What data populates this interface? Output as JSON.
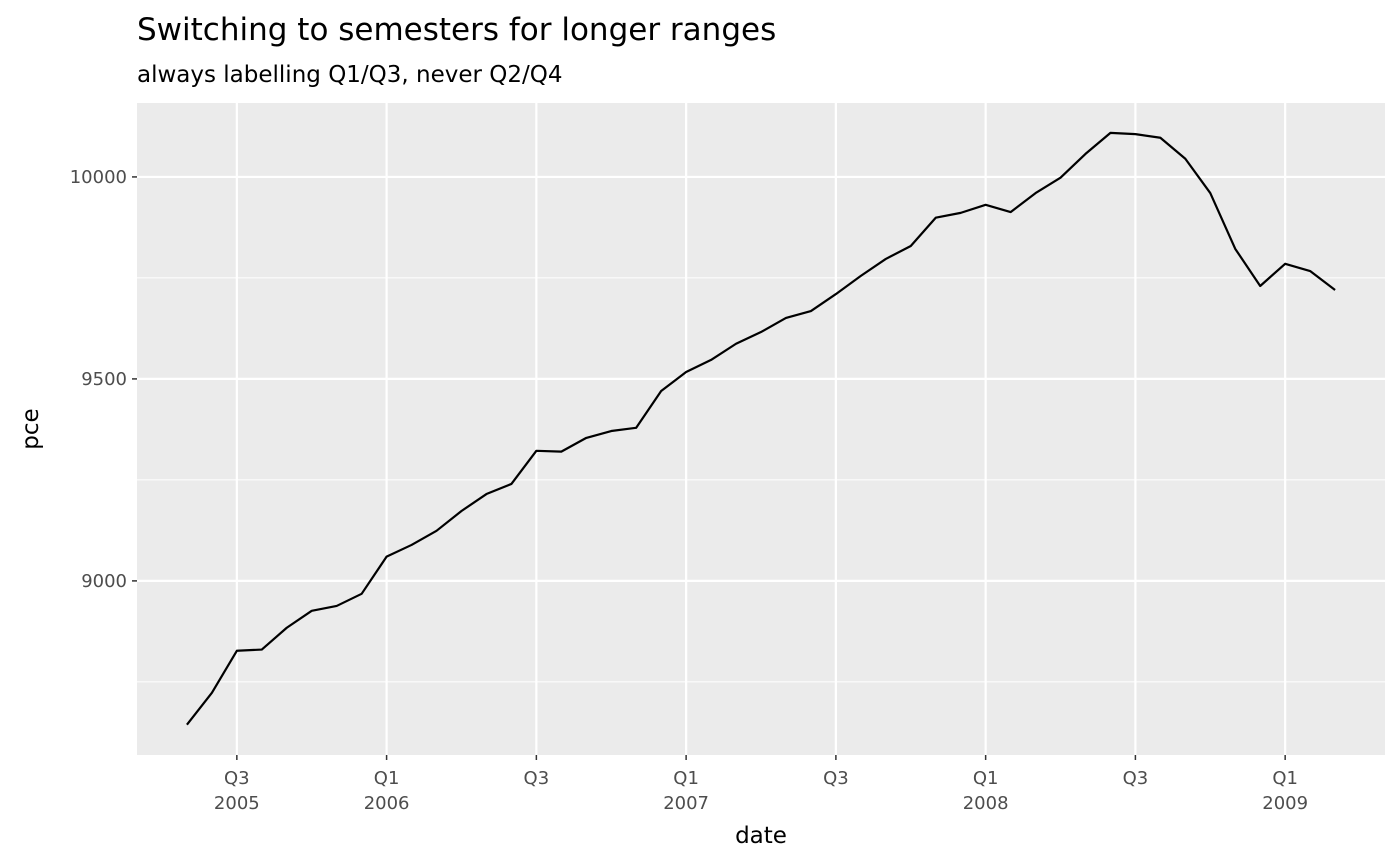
{
  "chart_data": {
    "type": "line",
    "title": "Switching to semesters for longer ranges",
    "subtitle": "always labelling Q1/Q3, never Q2/Q4",
    "x_label": "date",
    "y_label": "pce",
    "x": [
      "2005-05",
      "2005-06",
      "2005-07",
      "2005-08",
      "2005-09",
      "2005-10",
      "2005-11",
      "2005-12",
      "2006-01",
      "2006-02",
      "2006-03",
      "2006-04",
      "2006-05",
      "2006-06",
      "2006-07",
      "2006-08",
      "2006-09",
      "2006-10",
      "2006-11",
      "2006-12",
      "2007-01",
      "2007-02",
      "2007-03",
      "2007-04",
      "2007-05",
      "2007-06",
      "2007-07",
      "2007-08",
      "2007-09",
      "2007-10",
      "2007-11",
      "2007-12",
      "2008-01",
      "2008-02",
      "2008-03",
      "2008-04",
      "2008-05",
      "2008-06",
      "2008-07",
      "2008-08",
      "2008-09",
      "2008-10",
      "2008-11",
      "2008-12",
      "2009-01",
      "2009-02",
      "2009-03"
    ],
    "values": [
      8644,
      8723,
      8827,
      8830,
      8884,
      8926,
      8938,
      8968,
      9060,
      9089,
      9124,
      9173,
      9215,
      9240,
      9322,
      9320,
      9354,
      9371,
      9379,
      9470,
      9517,
      9547,
      9587,
      9616,
      9651,
      9668,
      9710,
      9755,
      9797,
      9829,
      9899,
      9911,
      9931,
      9913,
      9960,
      9998,
      10057,
      10109,
      10106,
      10097,
      10045,
      9960,
      9822,
      9730,
      9785,
      9767,
      9720
    ],
    "color": "#000000",
    "xlim": [
      "2005-03",
      "2009-05"
    ],
    "xticks": [
      {
        "value": "2005-07",
        "label": [
          "Q3",
          "2005"
        ]
      },
      {
        "value": "2006-01",
        "label": [
          "Q1",
          "2006"
        ]
      },
      {
        "value": "2006-07",
        "label": [
          "Q3"
        ]
      },
      {
        "value": "2007-01",
        "label": [
          "Q1",
          "2007"
        ]
      },
      {
        "value": "2007-07",
        "label": [
          "Q3"
        ]
      },
      {
        "value": "2008-01",
        "label": [
          "Q1",
          "2008"
        ]
      },
      {
        "value": "2008-07",
        "label": [
          "Q3"
        ]
      },
      {
        "value": "2009-01",
        "label": [
          "Q1",
          "2009"
        ]
      }
    ],
    "ylim": [
      8569,
      10183
    ],
    "yticks": [
      9000,
      9500,
      10000
    ],
    "minor_yticks": [
      8750,
      9250,
      9750
    ],
    "grid": true
  }
}
